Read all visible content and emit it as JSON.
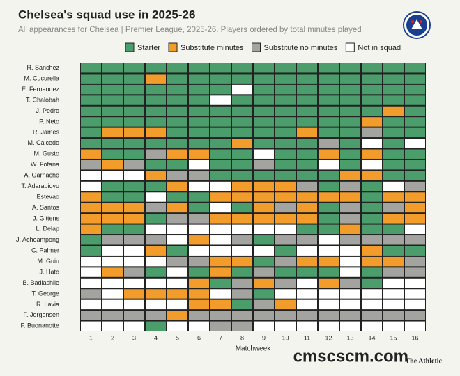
{
  "chart_data": {
    "type": "heatmap",
    "title": "Chelsea's squad use in 2025-26",
    "subtitle": "All appearances for Chelsea | Premier League, 2025-26. Players ordered by total minutes played",
    "legend": [
      {
        "name": "Starter",
        "color": "#4b9e6b"
      },
      {
        "name": "Substitute minutes",
        "color": "#f29c2b"
      },
      {
        "name": "Substitute no minutes",
        "color": "#a3a3a0"
      },
      {
        "name": "Not in squad",
        "color": "#ffffff"
      }
    ],
    "x": [
      1,
      2,
      3,
      4,
      5,
      6,
      7,
      8,
      9,
      10,
      11,
      12,
      13,
      14,
      15,
      16
    ],
    "xlabel": "Matchweek",
    "categories": [
      "R. Sanchez",
      "M. Cucurella",
      "E. Fernandez",
      "T. Chalobah",
      "J. Pedro",
      "P. Neto",
      "R. James",
      "M. Caicedo",
      "M. Gusto",
      "W. Fofana",
      "A. Garnacho",
      "T. Adarabioyo",
      "Estevao",
      "A. Santos",
      "J. Gittens",
      "L. Delap",
      "J. Acheampong",
      "C. Palmer",
      "M. Guiu",
      "J. Hato",
      "B. Badiashile",
      "T. George",
      "R. Lavia",
      "F. Jorgensen",
      "F. Buonanotte"
    ],
    "values": [
      [
        0,
        0,
        0,
        0,
        0,
        0,
        0,
        0,
        0,
        0,
        0,
        0,
        0,
        0,
        0,
        0
      ],
      [
        0,
        0,
        0,
        1,
        0,
        0,
        0,
        0,
        0,
        0,
        0,
        0,
        0,
        0,
        0,
        0
      ],
      [
        0,
        0,
        0,
        0,
        0,
        0,
        0,
        3,
        0,
        0,
        0,
        0,
        0,
        0,
        0,
        0
      ],
      [
        0,
        0,
        0,
        0,
        0,
        0,
        3,
        0,
        0,
        0,
        0,
        0,
        0,
        0,
        0,
        0
      ],
      [
        0,
        0,
        0,
        0,
        0,
        0,
        0,
        0,
        0,
        0,
        0,
        0,
        0,
        0,
        1,
        0
      ],
      [
        0,
        0,
        0,
        0,
        0,
        0,
        0,
        0,
        0,
        0,
        0,
        0,
        0,
        1,
        0,
        0
      ],
      [
        0,
        1,
        1,
        1,
        0,
        0,
        0,
        0,
        0,
        0,
        1,
        0,
        0,
        2,
        0,
        0
      ],
      [
        0,
        0,
        0,
        0,
        0,
        0,
        0,
        1,
        0,
        0,
        0,
        2,
        0,
        3,
        0,
        3
      ],
      [
        1,
        0,
        0,
        2,
        1,
        1,
        0,
        0,
        3,
        0,
        0,
        1,
        0,
        1,
        0,
        0
      ],
      [
        2,
        1,
        2,
        0,
        0,
        3,
        0,
        0,
        2,
        0,
        0,
        3,
        0,
        3,
        0,
        0
      ],
      [
        3,
        3,
        3,
        1,
        2,
        2,
        0,
        0,
        0,
        0,
        0,
        0,
        1,
        1,
        0,
        0
      ],
      [
        3,
        0,
        0,
        0,
        1,
        3,
        3,
        1,
        1,
        1,
        2,
        0,
        2,
        0,
        3,
        2
      ],
      [
        1,
        0,
        0,
        3,
        0,
        0,
        1,
        1,
        1,
        1,
        1,
        1,
        1,
        0,
        1,
        1
      ],
      [
        1,
        1,
        1,
        2,
        1,
        0,
        3,
        0,
        1,
        2,
        1,
        0,
        2,
        0,
        2,
        1
      ],
      [
        1,
        1,
        1,
        0,
        2,
        2,
        1,
        1,
        1,
        1,
        1,
        0,
        2,
        0,
        1,
        1
      ],
      [
        1,
        0,
        0,
        3,
        3,
        3,
        3,
        3,
        3,
        3,
        0,
        0,
        1,
        0,
        0,
        3
      ],
      [
        0,
        2,
        2,
        2,
        3,
        1,
        3,
        2,
        0,
        2,
        2,
        3,
        2,
        2,
        2,
        2
      ],
      [
        0,
        3,
        3,
        1,
        0,
        3,
        3,
        3,
        3,
        0,
        3,
        3,
        3,
        1,
        0,
        0
      ],
      [
        3,
        3,
        3,
        3,
        2,
        2,
        1,
        1,
        0,
        2,
        1,
        1,
        3,
        1,
        1,
        2
      ],
      [
        3,
        1,
        2,
        0,
        3,
        0,
        1,
        0,
        2,
        0,
        0,
        0,
        3,
        0,
        2,
        2
      ],
      [
        3,
        3,
        3,
        3,
        3,
        1,
        0,
        2,
        1,
        2,
        3,
        1,
        2,
        0,
        3,
        3
      ],
      [
        2,
        3,
        1,
        1,
        1,
        1,
        3,
        2,
        0,
        3,
        3,
        3,
        3,
        3,
        3,
        3
      ],
      [
        3,
        3,
        3,
        3,
        3,
        1,
        1,
        0,
        2,
        1,
        3,
        3,
        3,
        3,
        3,
        3
      ],
      [
        2,
        2,
        2,
        2,
        1,
        2,
        2,
        2,
        2,
        2,
        2,
        2,
        2,
        2,
        2,
        2
      ],
      [
        3,
        3,
        3,
        0,
        3,
        3,
        2,
        2,
        3,
        3,
        3,
        3,
        3,
        3,
        3,
        3
      ]
    ],
    "watermark": "cmscscm.com",
    "source": "The Athletic"
  }
}
